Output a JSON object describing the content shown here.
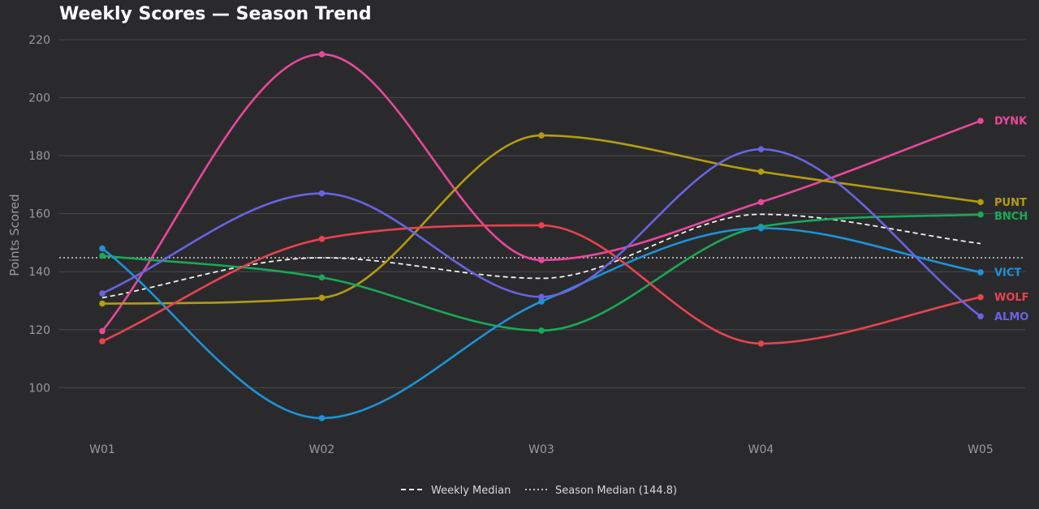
{
  "chart_data": {
    "type": "line",
    "title": "Weekly Scores — Season Trend",
    "xlabel": "",
    "ylabel": "Points Scored",
    "categories": [
      "W01",
      "W02",
      "W03",
      "W04",
      "W05"
    ],
    "ylim": [
      80,
      225
    ],
    "yticks": [
      100,
      120,
      140,
      160,
      180,
      200,
      220
    ],
    "grid": "horizontal",
    "legend_position": "bottom-center",
    "series": [
      {
        "name": "DYNK",
        "color": "#e8489a",
        "values": [
          119.5,
          215,
          144,
          164,
          192
        ]
      },
      {
        "name": "PUNT",
        "color": "#b39c12",
        "values": [
          129,
          131,
          187,
          174.5,
          164
        ]
      },
      {
        "name": "BNCH",
        "color": "#18a957",
        "values": [
          145.5,
          138,
          119.7,
          155.5,
          159.7
        ]
      },
      {
        "name": "VICT",
        "color": "#1d93d6",
        "values": [
          148,
          89.5,
          129.7,
          155,
          139.8
        ]
      },
      {
        "name": "WOLF",
        "color": "#e8434f",
        "values": [
          116,
          151.3,
          156,
          115.2,
          131.2
        ]
      },
      {
        "name": "ALMO",
        "color": "#6a63e0",
        "values": [
          132.5,
          167,
          131.3,
          182.2,
          124.6
        ]
      }
    ],
    "reference_lines": {
      "weekly_median": {
        "label": "Weekly Median",
        "color": "#f0f0f0",
        "values": [
          131,
          144.8,
          137.7,
          159.8,
          149.7
        ]
      },
      "season_median": {
        "label": "Season Median (144.8)",
        "color": "#bdbdbd",
        "value": 144.8
      }
    }
  }
}
